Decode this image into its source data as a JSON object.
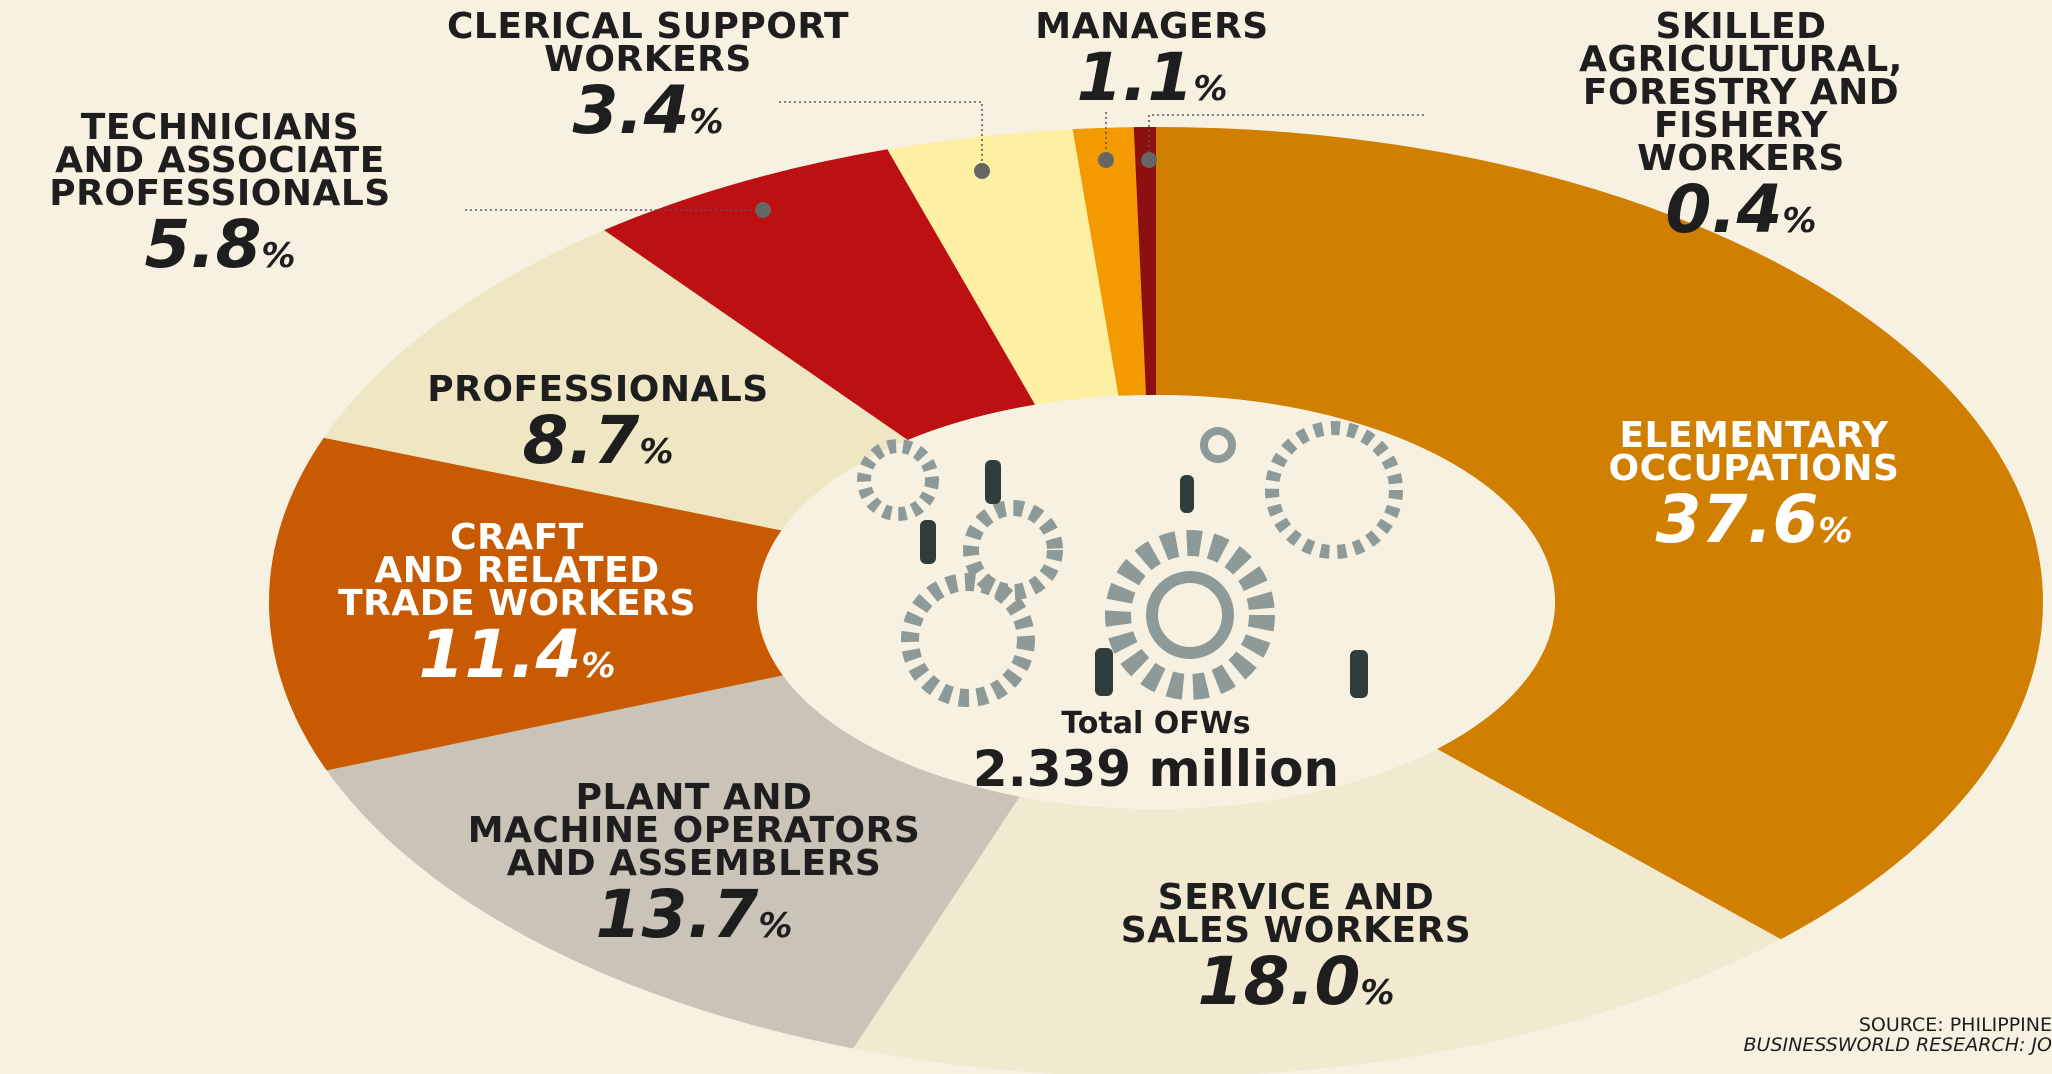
{
  "chart_data": {
    "type": "donut",
    "categories": [
      "ELEMENTARY\nOCCUPATIONS",
      "SERVICE AND\nSALES WORKERS",
      "PLANT AND\nMACHINE OPERATORS\nAND ASSEMBLERS",
      "CRAFT\nAND RELATED\nTRADE WORKERS",
      "PROFESSIONALS",
      "TECHNICIANS\nAND ASSOCIATE\nPROFESSIONALS",
      "CLERICAL SUPPORT\nWORKERS",
      "MANAGERS",
      "SKILLED AGRICULTURAL,\nFORESTRY AND\nFISHERY WORKERS"
    ],
    "values": [
      37.6,
      18.0,
      13.7,
      11.4,
      8.7,
      5.8,
      3.4,
      1.1,
      0.4
    ],
    "value_labels": [
      "37.6%",
      "18.0%",
      "13.7%",
      "11.4%",
      "8.7%",
      "5.8%",
      "3.4%",
      "1.1%",
      "0.4%"
    ],
    "colors": [
      "#d17f00",
      "#f2ead0",
      "#c9c4b7",
      "#c85a02",
      "#efe6c4",
      "#bc1013",
      "#fdf0a2",
      "#f29a00",
      "#8c100f"
    ],
    "center_label": "Total OFWs",
    "center_value": "2.339 million",
    "source": [
      "SOURCE: PHILIPPINE",
      "BUSINESSWORLD RESEARCH: JO"
    ]
  }
}
